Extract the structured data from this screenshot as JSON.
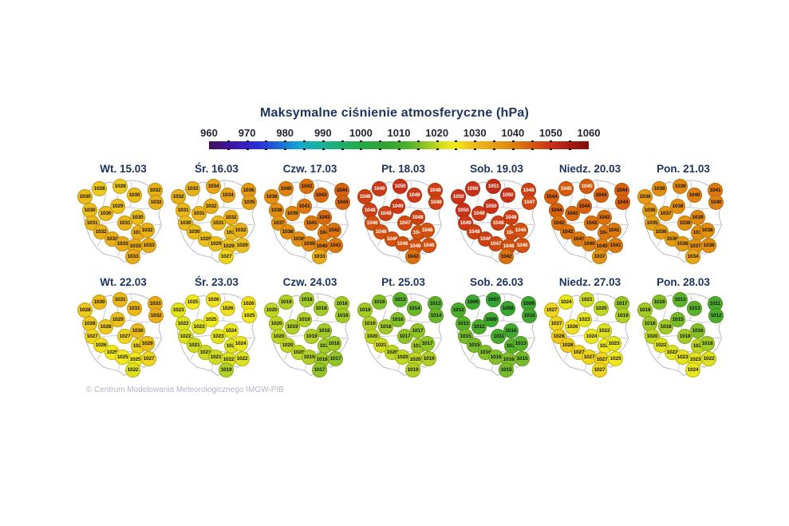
{
  "title": "Maksymalne ciśnienie atmosferyczne (hPa)",
  "footer": "© Centrum Modelowania Meteorologicznego IMGW-PIB",
  "chart_data": {
    "type": "map-grid-small-multiples",
    "title": "Maksymalne ciśnienie atmosferyczne (hPa)",
    "units": "hPa",
    "colorbar": {
      "min": 960,
      "max": 1060,
      "tick_labels": [
        "960",
        "970",
        "980",
        "990",
        "1000",
        "1010",
        "1020",
        "1030",
        "1040",
        "1050",
        "1060"
      ],
      "gradient_stops": [
        [
          960,
          "#45105e"
        ],
        [
          967,
          "#3b16ad"
        ],
        [
          973,
          "#2b2fd9"
        ],
        [
          979,
          "#1a6fd4"
        ],
        [
          984,
          "#14a9cf"
        ],
        [
          989,
          "#17b29b"
        ],
        [
          995,
          "#1fae69"
        ],
        [
          1001,
          "#27a743"
        ],
        [
          1007,
          "#31a432"
        ],
        [
          1012,
          "#4bae2b"
        ],
        [
          1016,
          "#82c027"
        ],
        [
          1019,
          "#b0d024"
        ],
        [
          1022,
          "#dce21f"
        ],
        [
          1025,
          "#f1e91c"
        ],
        [
          1029,
          "#ecc01a"
        ],
        [
          1033,
          "#e9ab16"
        ],
        [
          1038,
          "#e28f11"
        ],
        [
          1042,
          "#dc720e"
        ],
        [
          1046,
          "#d3500f"
        ],
        [
          1050,
          "#c93018"
        ],
        [
          1055,
          "#a81a0f"
        ],
        [
          1060,
          "#7c0d08"
        ]
      ],
      "white_text_threshold": 1045
    },
    "stations_xy_pct": [
      [
        24,
        13
      ],
      [
        47,
        11
      ],
      [
        9,
        22
      ],
      [
        62,
        20
      ],
      [
        84,
        15
      ],
      [
        85,
        28
      ],
      [
        14,
        36
      ],
      [
        44,
        32
      ],
      [
        31,
        40
      ],
      [
        65,
        44
      ],
      [
        17,
        50
      ],
      [
        52,
        50
      ],
      [
        26,
        59
      ],
      [
        66,
        60
      ],
      [
        76,
        58
      ],
      [
        38,
        67
      ],
      [
        49,
        72
      ],
      [
        63,
        75
      ],
      [
        77,
        74
      ],
      [
        60,
        86
      ]
    ],
    "maps": [
      {
        "label": "Wt. 15.03",
        "values": [
          1028,
          1028,
          1030,
          1030,
          1032,
          1032,
          1030,
          1029,
          1030,
          1030,
          1031,
          1031,
          1032,
          1032,
          1032,
          1032,
          1033,
          1033,
          1033,
          1033
        ]
      },
      {
        "label": "Śr. 16.03",
        "values": [
          1032,
          1034,
          1032,
          1034,
          1036,
          1035,
          1031,
          1032,
          1031,
          1032,
          1030,
          1031,
          1030,
          1030,
          1032,
          1029,
          1029,
          1029,
          1029,
          1027
        ]
      },
      {
        "label": "Czw. 17.03",
        "values": [
          1040,
          1042,
          1038,
          1043,
          1044,
          1044,
          1038,
          1041,
          1039,
          1043,
          1037,
          1041,
          1038,
          1041,
          1042,
          1038,
          1039,
          1040,
          1041,
          1033
        ]
      },
      {
        "label": "Pt. 18.03",
        "values": [
          1049,
          1050,
          1048,
          1049,
          1048,
          1048,
          1048,
          1049,
          1048,
          1048,
          1046,
          1047,
          1046,
          1046,
          1046,
          1046,
          1046,
          1046,
          1046,
          1042
        ]
      },
      {
        "label": "Sob. 19.03",
        "values": [
          1050,
          1051,
          1050,
          1050,
          1048,
          1047,
          1050,
          1050,
          1049,
          1048,
          1049,
          1048,
          1048,
          1047,
          1046,
          1048,
          1047,
          1046,
          1046,
          1042
        ]
      },
      {
        "label": "Niedz. 20.03",
        "values": [
          1045,
          1045,
          1044,
          1044,
          1044,
          1044,
          1044,
          1044,
          1043,
          1042,
          1042,
          1042,
          1042,
          1041,
          1041,
          1041,
          1040,
          1040,
          1041,
          1037
        ]
      },
      {
        "label": "Pon. 21.03",
        "values": [
          1038,
          1039,
          1036,
          1040,
          1041,
          1040,
          1036,
          1038,
          1037,
          1039,
          1035,
          1038,
          1036,
          1038,
          1038,
          1036,
          1036,
          1037,
          1038,
          1034
        ]
      },
      {
        "label": "Wt. 22.03",
        "values": [
          1030,
          1031,
          1028,
          1031,
          1033,
          1032,
          1028,
          1029,
          1028,
          1030,
          1027,
          1027,
          1026,
          1027,
          1029,
          1025,
          1025,
          1025,
          1027,
          1022
        ]
      },
      {
        "label": "Śr. 23.03",
        "values": [
          1025,
          1026,
          1023,
          1026,
          1026,
          1025,
          1022,
          1025,
          1023,
          1024,
          1022,
          1023,
          1021,
          1022,
          1024,
          1021,
          1021,
          1022,
          1022,
          1019
        ]
      },
      {
        "label": "Czw. 24.03",
        "values": [
          1019,
          1018,
          1020,
          1018,
          1018,
          1018,
          1020,
          1019,
          1019,
          1018,
          1020,
          1019,
          1020,
          1018,
          1018,
          1020,
          1019,
          1018,
          1017,
          1017
        ]
      },
      {
        "label": "Pt. 25.03",
        "values": [
          1016,
          1013,
          1018,
          1014,
          1013,
          1014,
          1019,
          1016,
          1018,
          1017,
          1020,
          1017,
          1021,
          1018,
          1017,
          1020,
          1020,
          1020,
          1019,
          1019
        ]
      },
      {
        "label": "Sob. 26.03",
        "values": [
          1009,
          1007,
          1012,
          1008,
          1009,
          1010,
          1013,
          1009,
          1012,
          1010,
          1015,
          1011,
          1015,
          1013,
          1013,
          1016,
          1016,
          1016,
          1015,
          1015
        ]
      },
      {
        "label": "Niedz. 27.03",
        "values": [
          1024,
          1021,
          1027,
          1020,
          1017,
          1019,
          1027,
          1023,
          1026,
          1022,
          1028,
          1024,
          1028,
          1025,
          1023,
          1027,
          1027,
          1027,
          1025,
          1027
        ]
      },
      {
        "label": "Pon. 28.03",
        "values": [
          1016,
          1013,
          1018,
          1013,
          1011,
          1012,
          1018,
          1015,
          1018,
          1016,
          1020,
          1018,
          1022,
          1020,
          1018,
          1022,
          1023,
          1023,
          1022,
          1024
        ]
      }
    ]
  }
}
